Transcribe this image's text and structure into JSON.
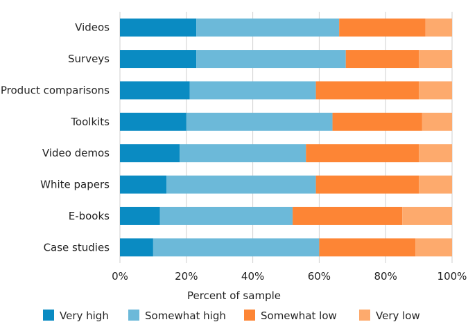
{
  "chart_data": {
    "type": "bar",
    "orientation": "horizontal",
    "stacked": true,
    "title": "",
    "xlabel": "Percent of sample",
    "ylabel": "",
    "xlim": [
      0,
      100
    ],
    "x_ticks": [
      "0%",
      "20%",
      "40%",
      "60%",
      "80%",
      "100%"
    ],
    "grid": "vertical",
    "legend_position": "bottom",
    "categories": [
      "Videos",
      "Surveys",
      "Product comparisons",
      "Toolkits",
      "Video demos",
      "White papers",
      "E-books",
      "Case studies"
    ],
    "series": [
      {
        "name": "Very high",
        "color": "#0a8bc2",
        "values": [
          23,
          23,
          21,
          20,
          18,
          14,
          12,
          10
        ]
      },
      {
        "name": "Somewhat high",
        "color": "#6cb9d9",
        "values": [
          43,
          45,
          38,
          44,
          38,
          45,
          40,
          50
        ]
      },
      {
        "name": "Somewhat low",
        "color": "#fd8535",
        "values": [
          26,
          22,
          31,
          27,
          34,
          31,
          33,
          29
        ]
      },
      {
        "name": "Very low",
        "color": "#fdaa6d",
        "values": [
          8,
          10,
          10,
          9,
          10,
          10,
          15,
          11
        ]
      }
    ]
  }
}
